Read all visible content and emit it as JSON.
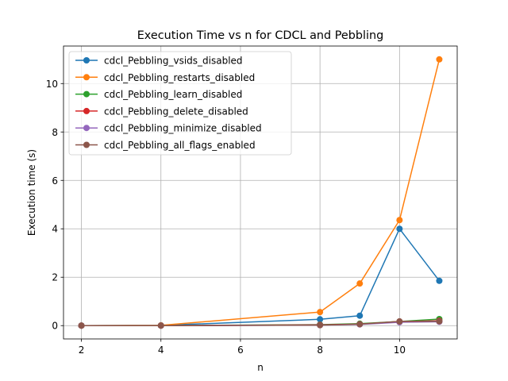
{
  "chart_data": {
    "type": "line",
    "title": "Execution Time vs n for CDCL and Pebbling",
    "xlabel": "n",
    "ylabel": "Execution time (s)",
    "x": [
      2,
      4,
      8,
      9,
      10,
      11
    ],
    "xlim": [
      1.55,
      11.45
    ],
    "ylim": [
      -0.55,
      11.55
    ],
    "xticks": [
      2,
      4,
      6,
      8,
      10
    ],
    "yticks": [
      0,
      2,
      4,
      6,
      8,
      10
    ],
    "grid": true,
    "legend_position": "upper-left",
    "marker": "circle",
    "series": [
      {
        "name": "cdcl_Pebbling_vsids_disabled",
        "color": "#1f77b4",
        "values": [
          0.0,
          0.01,
          0.26,
          0.41,
          4.0,
          1.85
        ]
      },
      {
        "name": "cdcl_Pebbling_restarts_disabled",
        "color": "#ff7f0e",
        "values": [
          0.0,
          0.01,
          0.56,
          1.74,
          4.36,
          11.0
        ]
      },
      {
        "name": "cdcl_Pebbling_learn_disabled",
        "color": "#2ca02c",
        "values": [
          0.0,
          0.0,
          0.04,
          0.08,
          0.17,
          0.27
        ]
      },
      {
        "name": "cdcl_Pebbling_delete_disabled",
        "color": "#d62728",
        "values": [
          0.0,
          0.0,
          0.03,
          0.06,
          0.17,
          0.2
        ]
      },
      {
        "name": "cdcl_Pebbling_minimize_disabled",
        "color": "#9467bd",
        "values": [
          0.0,
          0.0,
          0.02,
          0.05,
          0.14,
          0.16
        ]
      },
      {
        "name": "cdcl_Pebbling_all_flags_enabled",
        "color": "#8c564b",
        "values": [
          0.0,
          0.0,
          0.02,
          0.06,
          0.17,
          0.18
        ]
      }
    ]
  }
}
